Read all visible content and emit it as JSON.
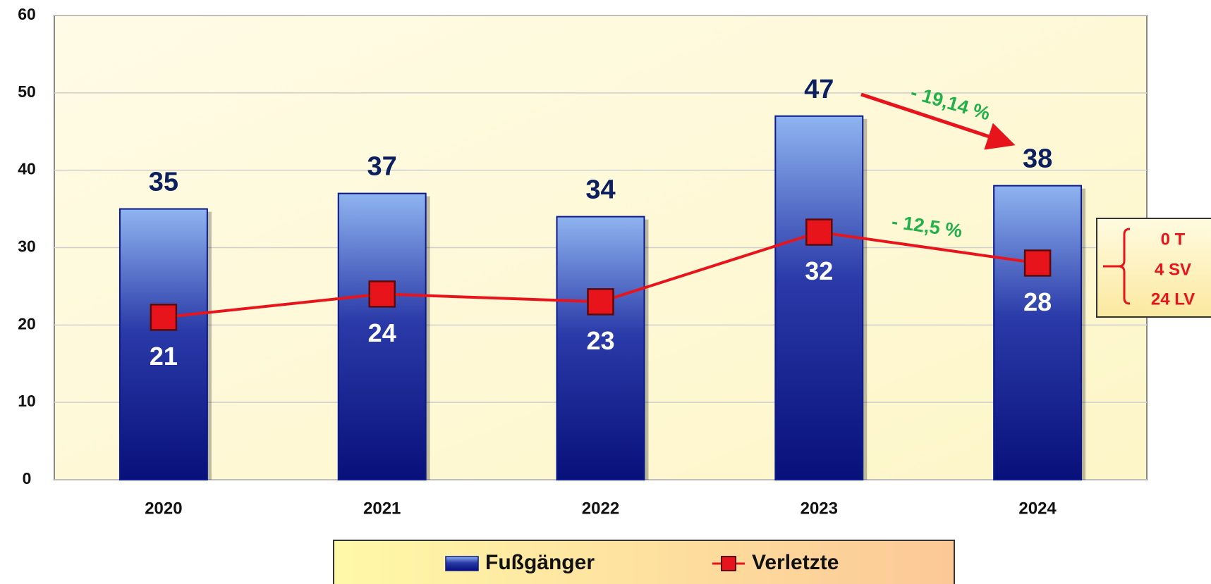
{
  "chart_data": {
    "type": "bar",
    "categories": [
      "2020",
      "2021",
      "2022",
      "2023",
      "2024"
    ],
    "series": [
      {
        "name": "Fußgänger",
        "type": "bar",
        "color": "#0a1a8c",
        "values": [
          35,
          37,
          34,
          47,
          38
        ]
      },
      {
        "name": "Verletzte",
        "type": "line",
        "color": "#e8141c",
        "values": [
          21,
          24,
          23,
          32,
          28
        ]
      }
    ],
    "ylim": [
      0,
      60
    ],
    "yticks": [
      0,
      10,
      20,
      30,
      40,
      50,
      60
    ],
    "grid": true,
    "annotations": [
      "- 19,14 %",
      "- 12,5 %"
    ],
    "side_note": [
      "0 T",
      "4 SV",
      "24 LV"
    ]
  }
}
